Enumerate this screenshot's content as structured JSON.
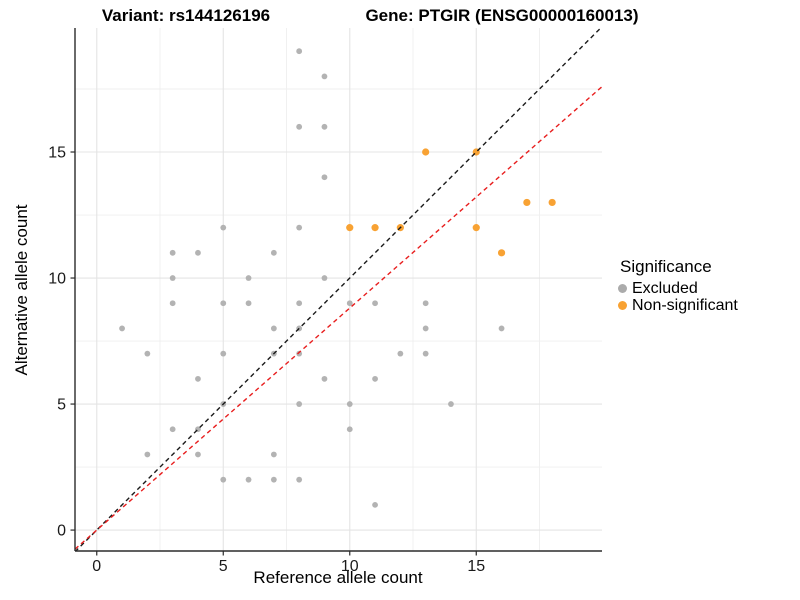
{
  "header": {
    "variant_title": "Variant: rs144126196",
    "gene_title": "Gene: PTGIR (ENSG00000160013)"
  },
  "axes": {
    "x_label": "Reference allele count",
    "y_label": "Alternative allele count"
  },
  "legend": {
    "title": "Significance",
    "items": [
      {
        "label": "Excluded",
        "color": "#ABABAB"
      },
      {
        "label": "Non-significant",
        "color": "#F8A233"
      }
    ]
  },
  "colors": {
    "excluded_point": "#B3B3B3",
    "non_significant_point": "#F8A233",
    "identity_line": "#1A1A1A",
    "fit_line": "#E81E1E",
    "grid_major": "#E4E4E4",
    "grid_minor": "#EFEFEF",
    "axis_line": "#2B2B2B",
    "tick_label": "#1A1A1A"
  },
  "chart_data": {
    "type": "scatter",
    "title": "Variant: rs144126196 | Gene: PTGIR (ENSG00000160013)",
    "xlabel": "Reference allele count",
    "ylabel": "Alternative allele count",
    "xlim": [
      -0.86,
      19.97
    ],
    "ylim": [
      -0.83,
      19.92
    ],
    "x_ticks": [
      0,
      5,
      10,
      15
    ],
    "y_ticks": [
      0,
      5,
      10,
      15
    ],
    "x_minor_ticks": [
      2.5,
      7.5,
      12.5,
      17.5
    ],
    "y_minor_ticks": [
      2.5,
      7.5,
      12.5,
      17.5
    ],
    "grid": true,
    "legend_position": "right",
    "legend_title": "Significance",
    "series": [
      {
        "name": "Excluded",
        "marker_radius": 2.9,
        "points": [
          [
            8,
            19
          ],
          [
            9,
            18
          ],
          [
            8,
            16
          ],
          [
            9,
            16
          ],
          [
            9,
            14
          ],
          [
            5,
            12
          ],
          [
            8,
            12
          ],
          [
            3,
            11
          ],
          [
            4,
            11
          ],
          [
            7,
            11
          ],
          [
            3,
            10
          ],
          [
            6,
            10
          ],
          [
            9,
            10
          ],
          [
            3,
            9
          ],
          [
            5,
            9
          ],
          [
            6,
            9
          ],
          [
            8,
            9
          ],
          [
            10,
            9
          ],
          [
            11,
            9
          ],
          [
            13,
            9
          ],
          [
            1,
            8
          ],
          [
            7,
            8
          ],
          [
            8,
            8
          ],
          [
            13,
            8
          ],
          [
            16,
            8
          ],
          [
            2,
            7
          ],
          [
            5,
            7
          ],
          [
            7,
            7
          ],
          [
            8,
            7
          ],
          [
            12,
            7
          ],
          [
            13,
            7
          ],
          [
            4,
            6
          ],
          [
            9,
            6
          ],
          [
            11,
            6
          ],
          [
            5,
            5
          ],
          [
            8,
            5
          ],
          [
            10,
            5
          ],
          [
            14,
            5
          ],
          [
            3,
            4
          ],
          [
            4,
            4
          ],
          [
            10,
            4
          ],
          [
            2,
            3
          ],
          [
            4,
            3
          ],
          [
            7,
            3
          ],
          [
            5,
            2
          ],
          [
            6,
            2
          ],
          [
            7,
            2
          ],
          [
            8,
            2
          ],
          [
            11,
            1
          ]
        ]
      },
      {
        "name": "Non-significant",
        "marker_radius": 3.6,
        "points": [
          [
            13,
            15
          ],
          [
            15,
            15
          ],
          [
            17,
            13
          ],
          [
            18,
            13
          ],
          [
            10,
            12
          ],
          [
            11,
            12
          ],
          [
            12,
            12
          ],
          [
            15,
            12
          ],
          [
            16,
            11
          ]
        ]
      }
    ],
    "lines": [
      {
        "name": "identity-line",
        "slope": 1.0,
        "intercept": 0,
        "style": "dashed"
      },
      {
        "name": "fit-line",
        "slope": 0.881,
        "intercept": 0,
        "style": "dashed"
      }
    ]
  }
}
